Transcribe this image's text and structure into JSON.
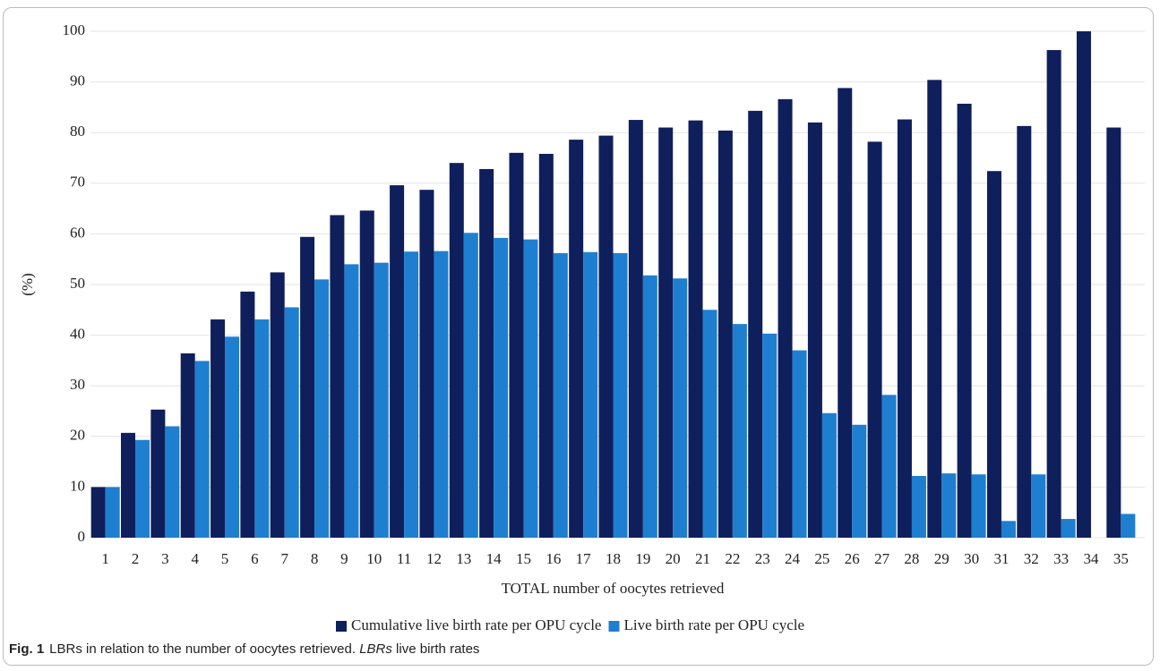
{
  "chart_data": {
    "type": "bar",
    "y_label": "(%)",
    "x_label": "TOTAL number of oocytes retrieved",
    "categories": [
      "1",
      "2",
      "3",
      "4",
      "5",
      "6",
      "7",
      "8",
      "9",
      "10",
      "11",
      "12",
      "13",
      "14",
      "15",
      "16",
      "17",
      "18",
      "19",
      "20",
      "21",
      "22",
      "23",
      "24",
      "25",
      "26",
      "27",
      "28",
      "29",
      "30",
      "31",
      "32",
      "33",
      "34",
      "35"
    ],
    "series": [
      {
        "name": "Cumulative live birth rate per OPU cycle",
        "color": "#0f1f5c",
        "values": [
          10,
          20.7,
          25.3,
          36.4,
          43.1,
          48.6,
          52.4,
          59.4,
          63.7,
          64.6,
          69.6,
          68.7,
          74,
          72.8,
          76,
          75.8,
          78.6,
          79.4,
          82.5,
          81,
          82.4,
          80.4,
          84.3,
          86.6,
          82,
          88.8,
          78.2,
          82.6,
          90.4,
          85.7,
          72.4,
          81.3,
          96.3,
          100,
          81
        ]
      },
      {
        "name": "Live birth rate per OPU cycle",
        "color": "#1e7fd0",
        "values": [
          10,
          19.3,
          22,
          34.9,
          39.7,
          43.1,
          45.5,
          51,
          54,
          54.3,
          56.5,
          56.6,
          60.2,
          59.2,
          58.9,
          56.2,
          56.4,
          56.2,
          51.8,
          51.2,
          45,
          42.2,
          40.3,
          37,
          24.6,
          22.3,
          28.2,
          12.2,
          12.7,
          12.5,
          3.3,
          12.5,
          3.7,
          0,
          4.7
        ]
      }
    ],
    "ylim": [
      0,
      100
    ],
    "yticks": [
      0,
      10,
      20,
      30,
      40,
      50,
      60,
      70,
      80,
      90,
      100
    ],
    "grid": true,
    "legend": "bottom",
    "caption": {
      "label": "Fig. 1",
      "text": "LBRs in relation to the number of oocytes retrieved.",
      "abbr": "LBRs",
      "abbr_text": "live birth rates"
    }
  }
}
